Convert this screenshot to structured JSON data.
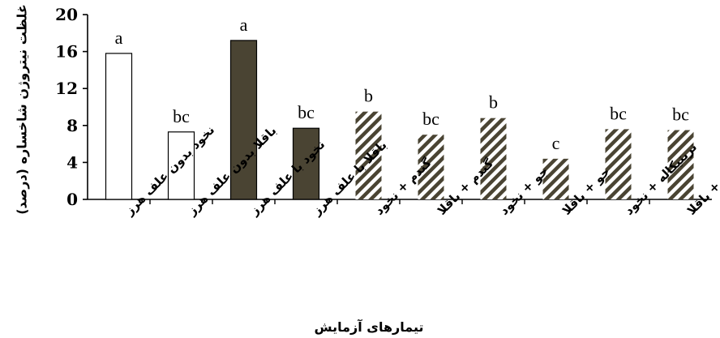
{
  "chart_data": {
    "type": "bar",
    "ylabel": "غلظت نیتروژن شاخساره (درصد)",
    "xlabel": "تیمارهای آزمایش",
    "ylim": [
      0,
      20
    ],
    "yticks": [
      0,
      4,
      8,
      12,
      16,
      20
    ],
    "grid": false,
    "categories": [
      "نخود بدون علف هرز",
      "باقلا بدون علف هرز",
      "نخود با علف هرز",
      "باقلا با علف هرز",
      "گندم + نخود",
      "گندم + باقلا",
      "جو + نخود",
      "جو + باقلا",
      "تریتیکاله + نخود",
      "تریتیکاله + باقلا"
    ],
    "values": [
      15.8,
      7.3,
      17.2,
      7.7,
      9.5,
      7.0,
      8.8,
      4.4,
      7.6,
      7.5
    ],
    "significance_letters": [
      "a",
      "bc",
      "a",
      "bc",
      "b",
      "bc",
      "b",
      "c",
      "bc",
      "bc"
    ],
    "bar_styles": [
      "white",
      "white",
      "dark",
      "dark",
      "hatched",
      "hatched",
      "hatched",
      "hatched",
      "hatched",
      "hatched"
    ],
    "colors": {
      "dark": "#4a4433",
      "hatch": "#4a4433",
      "outline": "#000000"
    }
  }
}
